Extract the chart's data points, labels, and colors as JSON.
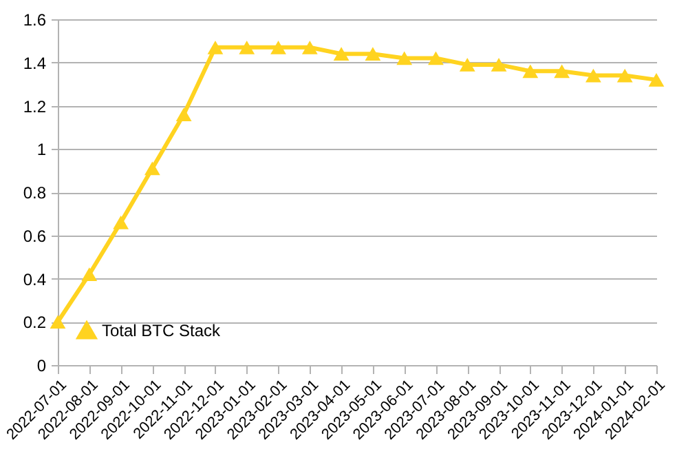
{
  "chart_data": {
    "type": "line",
    "categories": [
      "2022-07-01",
      "2022-08-01",
      "2022-09-01",
      "2022-10-01",
      "2022-11-01",
      "2022-12-01",
      "2023-01-01",
      "2023-02-01",
      "2023-03-01",
      "2023-04-01",
      "2023-05-01",
      "2023-06-01",
      "2023-07-01",
      "2023-08-01",
      "2023-09-01",
      "2023-10-01",
      "2023-11-01",
      "2023-12-01",
      "2024-01-01",
      "2024-02-01"
    ],
    "series": [
      {
        "name": "Total BTC Stack",
        "color": "#ffd320",
        "values": [
          0.2,
          0.42,
          0.66,
          0.91,
          1.16,
          1.47,
          1.47,
          1.47,
          1.47,
          1.44,
          1.44,
          1.42,
          1.42,
          1.39,
          1.39,
          1.36,
          1.36,
          1.34,
          1.34,
          1.32
        ]
      }
    ],
    "ylim": [
      0,
      1.6
    ],
    "yticks": [
      0,
      0.2,
      0.4,
      0.6,
      0.8,
      1,
      1.2,
      1.4,
      1.6
    ],
    "grid": "y",
    "legend": "bottom left",
    "marker": "triangle",
    "line_style": "solid"
  }
}
